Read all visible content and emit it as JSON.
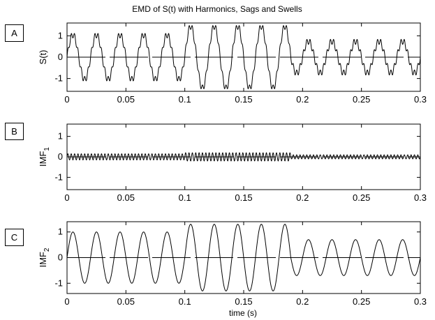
{
  "figure": {
    "title": "EMD of S(t) with Harmonics, Sags and Swells",
    "xlabel": "time (s)"
  },
  "chart_data": [
    {
      "type": "line",
      "panel_label": "A",
      "ylabel": "S(t)",
      "ylabel_sub": "",
      "xlim": [
        0,
        0.3
      ],
      "ylim": [
        -1.6,
        1.6
      ],
      "x_ticks": [
        0,
        0.05,
        0.1,
        0.15,
        0.2,
        0.25,
        0.3
      ],
      "x_tick_labels": [
        "0",
        "0.05",
        "0.1",
        "0.15",
        "0.2",
        "0.25",
        "0.3"
      ],
      "y_ticks": [
        -1,
        0,
        1
      ],
      "y_tick_labels": [
        "-1",
        "0",
        "1"
      ],
      "signal": {
        "fundamental_hz": 50,
        "harmonic_order": 7,
        "segments": [
          {
            "t_start": 0,
            "t_end": 0.1,
            "amplitude": 1.05
          },
          {
            "t_start": 0.1,
            "t_end": 0.19,
            "amplitude": 1.45
          },
          {
            "t_start": 0.19,
            "t_end": 0.3,
            "amplitude": 0.75
          }
        ]
      }
    },
    {
      "type": "line",
      "panel_label": "B",
      "ylabel": "IMF",
      "ylabel_sub": "1",
      "xlim": [
        0,
        0.3
      ],
      "ylim": [
        -1.6,
        1.6
      ],
      "x_ticks": [
        0,
        0.05,
        0.1,
        0.15,
        0.2,
        0.25,
        0.3
      ],
      "x_tick_labels": [
        "0",
        "0.05",
        "0.1",
        "0.15",
        "0.2",
        "0.25",
        "0.3"
      ],
      "y_ticks": [
        -1,
        0,
        1
      ],
      "y_tick_labels": [
        "-1",
        "0",
        "1"
      ],
      "signal": {
        "frequency_hz": 350,
        "segments": [
          {
            "t_start": 0,
            "t_end": 0.1,
            "amplitude": 0.15
          },
          {
            "t_start": 0.1,
            "t_end": 0.19,
            "amplitude": 0.2
          },
          {
            "t_start": 0.19,
            "t_end": 0.3,
            "amplitude": 0.1
          }
        ]
      }
    },
    {
      "type": "line",
      "panel_label": "C",
      "ylabel": "IMF",
      "ylabel_sub": "2",
      "xlim": [
        0,
        0.3
      ],
      "ylim": [
        -1.4,
        1.4
      ],
      "x_ticks": [
        0,
        0.05,
        0.1,
        0.15,
        0.2,
        0.25,
        0.3
      ],
      "x_tick_labels": [
        "0",
        "0.05",
        "0.1",
        "0.15",
        "0.2",
        "0.25",
        "0.3"
      ],
      "y_ticks": [
        -1,
        0,
        1
      ],
      "y_tick_labels": [
        "-1",
        "0",
        "1"
      ],
      "signal": {
        "frequency_hz": 50,
        "segments": [
          {
            "t_start": 0,
            "t_end": 0.1,
            "amplitude": 1.0
          },
          {
            "t_start": 0.1,
            "t_end": 0.19,
            "amplitude": 1.3
          },
          {
            "t_start": 0.19,
            "t_end": 0.3,
            "amplitude": 0.7
          }
        ]
      }
    }
  ]
}
